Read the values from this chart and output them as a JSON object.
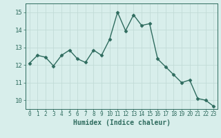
{
  "x": [
    0,
    1,
    2,
    3,
    4,
    5,
    6,
    7,
    8,
    9,
    10,
    11,
    12,
    13,
    14,
    15,
    16,
    17,
    18,
    19,
    20,
    21,
    22,
    23
  ],
  "y": [
    12.1,
    12.55,
    12.45,
    11.95,
    12.55,
    12.85,
    12.35,
    12.15,
    12.85,
    12.55,
    13.45,
    15.0,
    13.95,
    14.85,
    14.25,
    14.35,
    12.35,
    11.9,
    11.45,
    11.0,
    11.15,
    10.1,
    10.0,
    9.65
  ],
  "line_color": "#2e6b5e",
  "marker": "D",
  "markersize": 2.5,
  "linewidth": 1.0,
  "xlabel": "Humidex (Indice chaleur)",
  "xlim": [
    -0.5,
    23.5
  ],
  "ylim": [
    9.5,
    15.5
  ],
  "yticks": [
    10,
    11,
    12,
    13,
    14,
    15
  ],
  "xticks": [
    0,
    1,
    2,
    3,
    4,
    5,
    6,
    7,
    8,
    9,
    10,
    11,
    12,
    13,
    14,
    15,
    16,
    17,
    18,
    19,
    20,
    21,
    22,
    23
  ],
  "xtick_labels": [
    "0",
    "1",
    "2",
    "3",
    "4",
    "5",
    "6",
    "7",
    "8",
    "9",
    "10",
    "11",
    "12",
    "13",
    "14",
    "15",
    "16",
    "17",
    "18",
    "19",
    "20",
    "21",
    "22",
    "23"
  ],
  "bg_color": "#d8eeeb",
  "grid_color": "#c2dbd7",
  "fig_bg": "#d8eeeb",
  "tick_color": "#2e6b5e",
  "xlabel_fontsize": 7,
  "ytick_fontsize": 6.5,
  "xtick_fontsize": 5.5
}
